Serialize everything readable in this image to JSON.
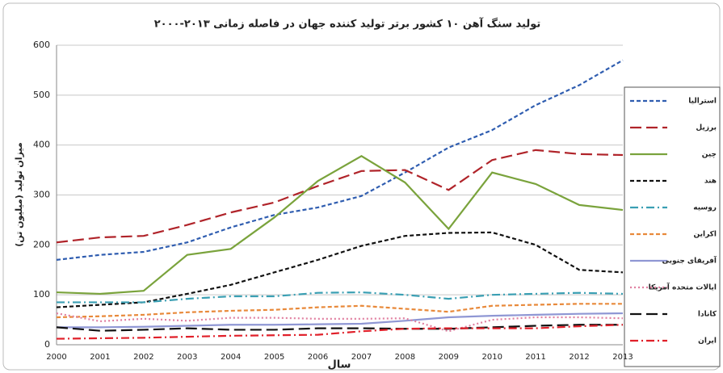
{
  "chart_data": {
    "type": "line",
    "title": "تولید سنگ آهن ۱۰ کشور برتر تولید کننده جهان در فاصله زمانی ۲۰۱۳-۲۰۰۰",
    "x_label": "سال",
    "y_label": "میزان تولید (میلیون تن)",
    "categories": [
      "2000",
      "2001",
      "2002",
      "2003",
      "2004",
      "2005",
      "2006",
      "2007",
      "2008",
      "2009",
      "2010",
      "2011",
      "2012",
      "2013"
    ],
    "ylim": [
      0,
      600
    ],
    "yticks": [
      0,
      100,
      200,
      300,
      400,
      500,
      600
    ],
    "grid": true,
    "legend": "right",
    "series": [
      {
        "name": "استرالیا",
        "color": "#2f5db0",
        "line_style": "dashed",
        "values": [
          170,
          180,
          186,
          205,
          235,
          260,
          275,
          298,
          345,
          395,
          430,
          480,
          520,
          570
        ]
      },
      {
        "name": "برزیل",
        "color": "#b0242a",
        "line_style": "long-dash",
        "values": [
          205,
          215,
          218,
          240,
          265,
          285,
          318,
          348,
          350,
          310,
          370,
          390,
          382,
          380
        ]
      },
      {
        "name": "چین",
        "color": "#7aa33c",
        "line_style": "solid",
        "values": [
          105,
          102,
          108,
          180,
          192,
          255,
          328,
          378,
          325,
          232,
          345,
          322,
          280,
          270
        ]
      },
      {
        "name": "هند",
        "color": "#111111",
        "line_style": "dashed",
        "values": [
          75,
          80,
          85,
          102,
          120,
          145,
          170,
          198,
          218,
          224,
          225,
          200,
          150,
          145
        ]
      },
      {
        "name": "روسیه",
        "color": "#3a9fb3",
        "line_style": "dash-dot",
        "values": [
          85,
          85,
          85,
          92,
          97,
          97,
          104,
          105,
          100,
          92,
          100,
          102,
          104,
          102
        ]
      },
      {
        "name": "اکراین",
        "color": "#e8893a",
        "line_style": "dashed",
        "values": [
          55,
          57,
          60,
          65,
          68,
          70,
          75,
          78,
          72,
          66,
          78,
          80,
          82,
          82
        ]
      },
      {
        "name": "آفریقای جنوبی",
        "color": "#8f97d4",
        "line_style": "solid",
        "values": [
          35,
          35,
          36,
          38,
          40,
          40,
          41,
          42,
          48,
          55,
          58,
          60,
          62,
          63
        ]
      },
      {
        "name": "ایالات متحده آمریکا",
        "color": "#e07fa0",
        "line_style": "dotted",
        "values": [
          63,
          47,
          52,
          48,
          54,
          54,
          52,
          52,
          53,
          27,
          50,
          55,
          55,
          53
        ]
      },
      {
        "name": "کانادا",
        "color": "#111111",
        "line_style": "long-dash",
        "values": [
          35,
          28,
          30,
          33,
          30,
          30,
          33,
          33,
          32,
          32,
          35,
          38,
          40,
          40
        ]
      },
      {
        "name": "ایران",
        "color": "#e0202a",
        "line_style": "dash-dot",
        "values": [
          12,
          13,
          14,
          16,
          18,
          19,
          20,
          27,
          32,
          33,
          33,
          33,
          37,
          40
        ]
      }
    ]
  }
}
